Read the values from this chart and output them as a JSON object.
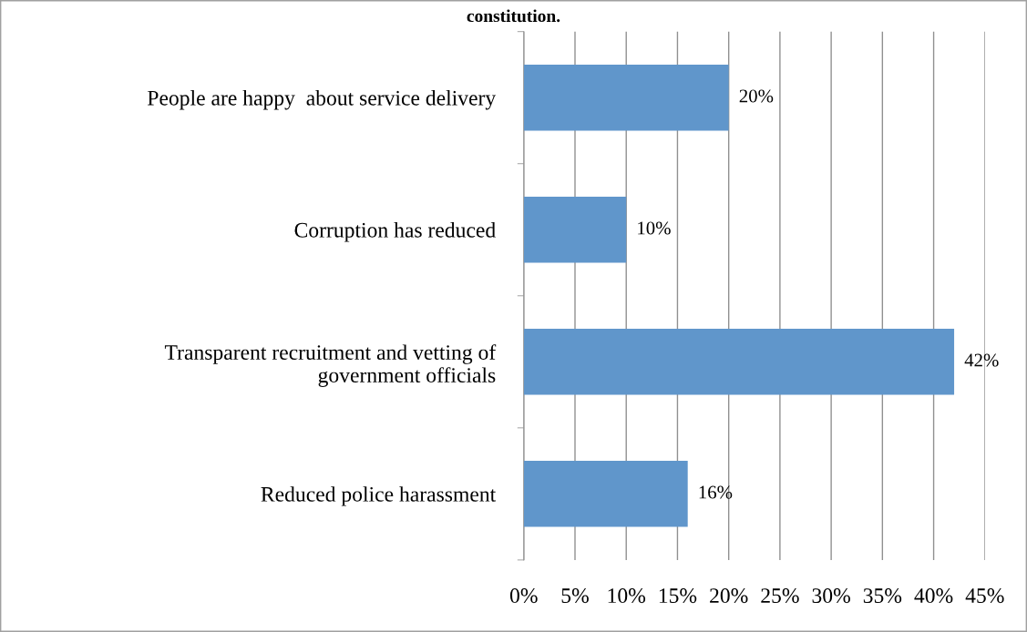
{
  "chart_data": {
    "type": "bar",
    "orientation": "horizontal",
    "title": "constitution.",
    "categories": [
      "People are happy  about service delivery",
      "Corruption has reduced",
      "Transparent recruitment and vetting of\ngovernment officials",
      "Reduced police harassment"
    ],
    "values": [
      20,
      10,
      42,
      16
    ],
    "value_labels": [
      "20%",
      "10%",
      "42%",
      "16%"
    ],
    "color": "#6096cb",
    "xlim": [
      0,
      45
    ],
    "xticks": [
      {
        "value": 0,
        "label": "0%"
      },
      {
        "value": 5,
        "label": "5%"
      },
      {
        "value": 10,
        "label": "10%"
      },
      {
        "value": 15,
        "label": "15%"
      },
      {
        "value": 20,
        "label": "20%"
      },
      {
        "value": 25,
        "label": "25%"
      },
      {
        "value": 30,
        "label": "30%"
      },
      {
        "value": 35,
        "label": "35%"
      },
      {
        "value": 40,
        "label": "40%"
      },
      {
        "value": 45,
        "label": "45%"
      }
    ],
    "grid": "x",
    "legend": false
  }
}
